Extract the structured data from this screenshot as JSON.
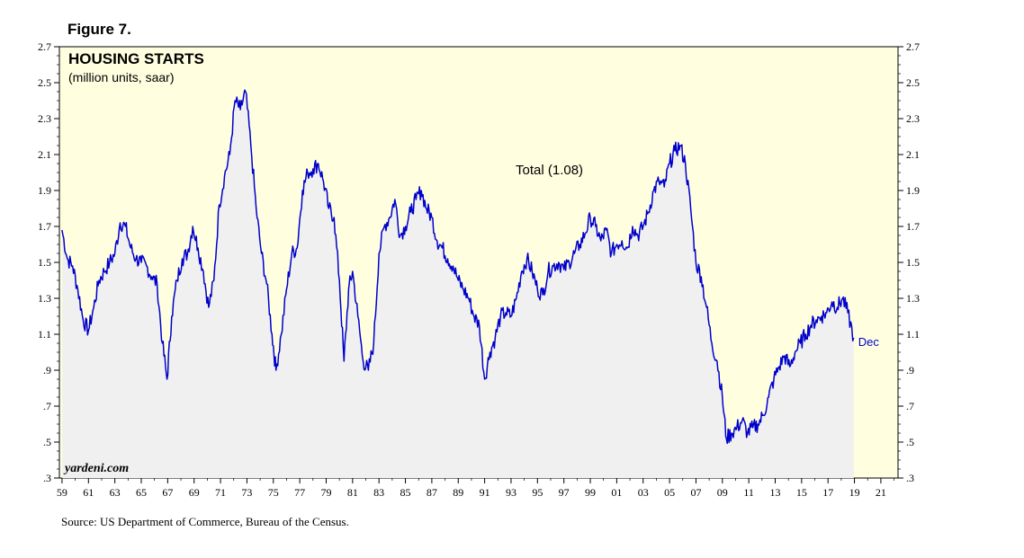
{
  "figure_label": "Figure 7.",
  "source_note": "Source: US Department of Commerce, Bureau of the Census.",
  "brand": "yardeni.com",
  "colors": {
    "plot_bg": "#ffffe0",
    "area_fill": "#f0f0f0",
    "line": "#0000cc"
  },
  "chart_data": {
    "type": "area",
    "title": "HOUSING STARTS",
    "subtitle": "(million units, saar)",
    "series_label": "Total (1.08)",
    "end_label": "Dec",
    "xlim": [
      1958.8,
      2022.3
    ],
    "ylim": [
      0.3,
      2.7
    ],
    "y_ticks": [
      2.7,
      2.5,
      2.3,
      2.1,
      1.9,
      1.7,
      1.5,
      1.3,
      1.1,
      0.9,
      0.7,
      0.5,
      0.3
    ],
    "y_tick_labels": [
      "2.7",
      "2.5",
      "2.3",
      "2.1",
      "1.9",
      "1.7",
      "1.5",
      "1.3",
      "1.1",
      ".9",
      ".7",
      ".5",
      ".3"
    ],
    "x_ticks": [
      1959,
      1961,
      1963,
      1965,
      1967,
      1969,
      1971,
      1973,
      1975,
      1977,
      1979,
      1981,
      1983,
      1985,
      1987,
      1989,
      1991,
      1993,
      1995,
      1997,
      1999,
      2001,
      2003,
      2005,
      2007,
      2009,
      2011,
      2013,
      2015,
      2017,
      2019,
      2021
    ],
    "x_tick_labels": [
      "59",
      "61",
      "63",
      "65",
      "67",
      "69",
      "71",
      "73",
      "75",
      "77",
      "79",
      "81",
      "83",
      "85",
      "87",
      "89",
      "91",
      "93",
      "95",
      "97",
      "99",
      "01",
      "03",
      "05",
      "07",
      "09",
      "11",
      "13",
      "15",
      "17",
      "19",
      "21"
    ],
    "series": [
      {
        "name": "Total",
        "x": [
          1959.0,
          1959.4,
          1959.8,
          1960.2,
          1960.6,
          1961.0,
          1961.4,
          1961.8,
          1962.2,
          1962.6,
          1963.0,
          1963.4,
          1963.8,
          1964.2,
          1964.6,
          1965.0,
          1965.4,
          1965.8,
          1966.2,
          1966.6,
          1966.95,
          1967.3,
          1967.7,
          1968.1,
          1968.5,
          1968.9,
          1969.3,
          1969.7,
          1970.1,
          1970.5,
          1970.9,
          1971.3,
          1971.7,
          1972.1,
          1972.5,
          1972.9,
          1973.3,
          1973.7,
          1974.1,
          1974.5,
          1974.9,
          1975.2,
          1975.6,
          1976.0,
          1976.4,
          1976.8,
          1977.2,
          1977.6,
          1978.0,
          1978.4,
          1978.8,
          1979.2,
          1979.6,
          1980.0,
          1980.35,
          1980.7,
          1981.0,
          1981.4,
          1981.8,
          1982.2,
          1982.6,
          1983.0,
          1983.4,
          1983.8,
          1984.2,
          1984.6,
          1985.0,
          1985.4,
          1985.8,
          1986.2,
          1986.6,
          1987.0,
          1987.4,
          1987.8,
          1988.2,
          1988.6,
          1989.0,
          1989.4,
          1989.8,
          1990.2,
          1990.6,
          1991.0,
          1991.4,
          1991.8,
          1992.2,
          1992.6,
          1993.0,
          1993.4,
          1993.8,
          1994.2,
          1994.6,
          1995.0,
          1995.4,
          1995.8,
          1996.2,
          1996.6,
          1997.0,
          1997.4,
          1997.8,
          1998.2,
          1998.6,
          1999.0,
          1999.4,
          1999.8,
          2000.2,
          2000.6,
          2001.0,
          2001.4,
          2001.8,
          2002.2,
          2002.6,
          2003.0,
          2003.4,
          2003.8,
          2004.2,
          2004.6,
          2005.0,
          2005.4,
          2005.8,
          2006.2,
          2006.6,
          2007.0,
          2007.4,
          2007.8,
          2008.2,
          2008.6,
          2009.0,
          2009.3,
          2009.7,
          2010.1,
          2010.5,
          2010.9,
          2011.3,
          2011.7,
          2012.1,
          2012.5,
          2012.9,
          2013.3,
          2013.7,
          2014.1,
          2014.5,
          2014.9,
          2015.3,
          2015.7,
          2016.1,
          2016.5,
          2016.9,
          2017.3,
          2017.7,
          2018.1,
          2018.5,
          2018.95
        ],
        "values": [
          1.68,
          1.52,
          1.48,
          1.35,
          1.18,
          1.12,
          1.25,
          1.4,
          1.45,
          1.5,
          1.55,
          1.72,
          1.7,
          1.58,
          1.52,
          1.5,
          1.48,
          1.42,
          1.38,
          1.05,
          0.85,
          1.2,
          1.4,
          1.52,
          1.55,
          1.7,
          1.58,
          1.45,
          1.25,
          1.4,
          1.82,
          1.98,
          2.1,
          2.4,
          2.35,
          2.45,
          2.15,
          1.8,
          1.55,
          1.38,
          1.1,
          0.9,
          1.1,
          1.35,
          1.55,
          1.58,
          1.9,
          2.0,
          2.02,
          2.05,
          1.95,
          1.8,
          1.75,
          1.4,
          0.95,
          1.35,
          1.45,
          1.2,
          0.95,
          0.9,
          1.05,
          1.55,
          1.7,
          1.75,
          1.85,
          1.65,
          1.7,
          1.78,
          1.85,
          1.9,
          1.8,
          1.75,
          1.62,
          1.58,
          1.52,
          1.48,
          1.4,
          1.35,
          1.3,
          1.2,
          1.15,
          0.85,
          1.0,
          1.08,
          1.2,
          1.22,
          1.2,
          1.3,
          1.45,
          1.52,
          1.45,
          1.35,
          1.32,
          1.45,
          1.48,
          1.5,
          1.46,
          1.5,
          1.55,
          1.6,
          1.66,
          1.75,
          1.7,
          1.62,
          1.68,
          1.55,
          1.6,
          1.62,
          1.58,
          1.7,
          1.65,
          1.7,
          1.78,
          1.9,
          1.95,
          1.92,
          2.05,
          2.12,
          2.15,
          2.05,
          1.8,
          1.5,
          1.42,
          1.25,
          1.05,
          0.95,
          0.75,
          0.52,
          0.55,
          0.58,
          0.62,
          0.55,
          0.58,
          0.6,
          0.65,
          0.75,
          0.85,
          0.92,
          0.98,
          0.92,
          1.0,
          1.05,
          1.1,
          1.15,
          1.18,
          1.2,
          1.22,
          1.28,
          1.25,
          1.3,
          1.22,
          1.08
        ]
      }
    ]
  }
}
